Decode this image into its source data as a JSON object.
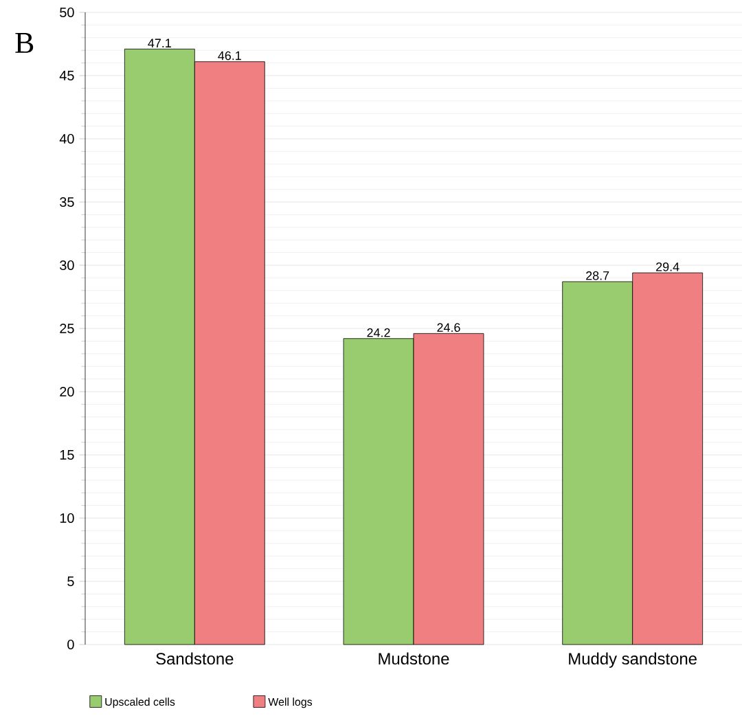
{
  "chart_data": {
    "type": "bar",
    "annotations": [
      "B"
    ],
    "categories": [
      "Sandstone",
      "Mudstone",
      "Muddy sandstone"
    ],
    "series": [
      {
        "name": "Upscaled cells",
        "color": "#99cc6e",
        "values": [
          47.1,
          24.2,
          28.7
        ]
      },
      {
        "name": "Well logs",
        "color": "#f07f82",
        "values": [
          46.1,
          24.6,
          29.4
        ]
      }
    ],
    "ylim": [
      0,
      50
    ],
    "yticks": [
      0,
      5,
      10,
      15,
      20,
      25,
      30,
      35,
      40,
      45,
      50
    ],
    "grid": "y",
    "legend": "bottom left",
    "data_labels": true
  }
}
